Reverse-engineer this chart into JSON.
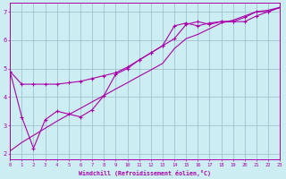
{
  "xlabel": "Windchill (Refroidissement éolien,°C)",
  "background_color": "#cceef2",
  "line_color": "#aa00aa",
  "grid_color": "#99bbcc",
  "xlim": [
    0,
    23
  ],
  "ylim": [
    1.8,
    7.3
  ],
  "xticks": [
    0,
    1,
    2,
    3,
    4,
    5,
    6,
    7,
    8,
    9,
    10,
    11,
    12,
    13,
    14,
    15,
    16,
    17,
    18,
    19,
    20,
    21,
    22,
    23
  ],
  "yticks": [
    2,
    3,
    4,
    5,
    6,
    7
  ],
  "series1_x": [
    0,
    1,
    2,
    3,
    4,
    5,
    6,
    7,
    8,
    9,
    10,
    11,
    12,
    13,
    14,
    15,
    16,
    17,
    18,
    19,
    20,
    21,
    22,
    23
  ],
  "series1_y": [
    4.9,
    4.45,
    4.45,
    4.45,
    4.45,
    4.5,
    4.55,
    4.65,
    4.75,
    4.85,
    5.05,
    5.3,
    5.55,
    5.8,
    6.05,
    6.55,
    6.65,
    6.55,
    6.65,
    6.65,
    6.65,
    6.85,
    7.0,
    7.15
  ],
  "series2_x": [
    0,
    1,
    2,
    3,
    4,
    5,
    6,
    7,
    8,
    9,
    10,
    11,
    12,
    13,
    14,
    15,
    16,
    17,
    18,
    19,
    20,
    21,
    22,
    23
  ],
  "series2_y": [
    4.9,
    3.3,
    2.2,
    3.2,
    3.5,
    3.4,
    3.3,
    3.55,
    4.05,
    4.8,
    5.0,
    5.3,
    5.55,
    5.8,
    6.5,
    6.6,
    6.5,
    6.6,
    6.65,
    6.65,
    6.8,
    7.0,
    7.0,
    7.15
  ],
  "series3_x": [
    0,
    1,
    2,
    3,
    4,
    5,
    6,
    7,
    8,
    9,
    10,
    11,
    12,
    13,
    14,
    15,
    16,
    17,
    18,
    19,
    20,
    21,
    22,
    23
  ],
  "series3_y": [
    2.1,
    2.4,
    2.65,
    2.9,
    3.15,
    3.38,
    3.6,
    3.83,
    4.05,
    4.28,
    4.5,
    4.73,
    4.95,
    5.18,
    5.7,
    6.05,
    6.2,
    6.4,
    6.6,
    6.7,
    6.85,
    7.0,
    7.05,
    7.15
  ]
}
